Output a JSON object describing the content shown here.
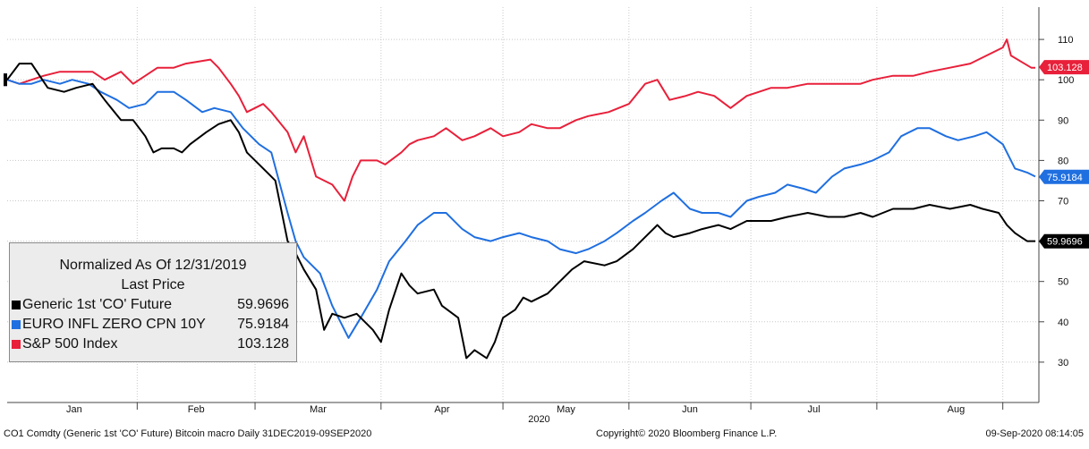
{
  "footer": {
    "left": "CO1 Comdty (Generic 1st 'CO' Future) Bitcoin macro  Daily 31DEC2019-09SEP2020",
    "center": "Copyright© 2020 Bloomberg Finance L.P.",
    "right": "09-Sep-2020 08:14:05"
  },
  "chart_data": {
    "type": "line",
    "title": "Normalized As Of 12/31/2019",
    "subtitle": "Last Price",
    "x_labels": [
      "Jan",
      "Feb",
      "Mar",
      "Apr",
      "May",
      "Jun",
      "Jul",
      "Aug"
    ],
    "x_year_label": "2020",
    "y_ticks": [
      30,
      40,
      50,
      60,
      70,
      80,
      90,
      100,
      110
    ],
    "ylim": [
      20,
      118
    ],
    "x_range": [
      "2019-12-31",
      "2020-09-09"
    ],
    "legend_position": "bottom-left",
    "series": [
      {
        "name": "Generic 1st 'CO' Future",
        "color": "#000000",
        "last": "59.9696",
        "points": [
          [
            "2019-12-31",
            100
          ],
          [
            "2020-01-03",
            104
          ],
          [
            "2020-01-06",
            104
          ],
          [
            "2020-01-08",
            101
          ],
          [
            "2020-01-10",
            98
          ],
          [
            "2020-01-14",
            97
          ],
          [
            "2020-01-17",
            98
          ],
          [
            "2020-01-21",
            99
          ],
          [
            "2020-01-24",
            95
          ],
          [
            "2020-01-28",
            90
          ],
          [
            "2020-01-31",
            90
          ],
          [
            "2020-02-03",
            86
          ],
          [
            "2020-02-05",
            82
          ],
          [
            "2020-02-07",
            83
          ],
          [
            "2020-02-10",
            83
          ],
          [
            "2020-02-12",
            82
          ],
          [
            "2020-02-14",
            84
          ],
          [
            "2020-02-18",
            87
          ],
          [
            "2020-02-21",
            89
          ],
          [
            "2020-02-24",
            90
          ],
          [
            "2020-02-26",
            87
          ],
          [
            "2020-02-28",
            82
          ],
          [
            "2020-03-02",
            79
          ],
          [
            "2020-03-04",
            77
          ],
          [
            "2020-03-06",
            75
          ],
          [
            "2020-03-09",
            60
          ],
          [
            "2020-03-11",
            57
          ],
          [
            "2020-03-13",
            53
          ],
          [
            "2020-03-16",
            48
          ],
          [
            "2020-03-18",
            38
          ],
          [
            "2020-03-20",
            42
          ],
          [
            "2020-03-23",
            41
          ],
          [
            "2020-03-26",
            42
          ],
          [
            "2020-03-30",
            38
          ],
          [
            "2020-04-01",
            35
          ],
          [
            "2020-04-03",
            43
          ],
          [
            "2020-04-06",
            52
          ],
          [
            "2020-04-08",
            49
          ],
          [
            "2020-04-10",
            47
          ],
          [
            "2020-04-14",
            48
          ],
          [
            "2020-04-16",
            44
          ],
          [
            "2020-04-20",
            41
          ],
          [
            "2020-04-22",
            31
          ],
          [
            "2020-04-24",
            33
          ],
          [
            "2020-04-27",
            31
          ],
          [
            "2020-04-29",
            35
          ],
          [
            "2020-05-01",
            41
          ],
          [
            "2020-05-04",
            43
          ],
          [
            "2020-05-06",
            46
          ],
          [
            "2020-05-08",
            45
          ],
          [
            "2020-05-12",
            47
          ],
          [
            "2020-05-14",
            49
          ],
          [
            "2020-05-18",
            53
          ],
          [
            "2020-05-21",
            55
          ],
          [
            "2020-05-26",
            54
          ],
          [
            "2020-05-29",
            55
          ],
          [
            "2020-06-02",
            58
          ],
          [
            "2020-06-05",
            61
          ],
          [
            "2020-06-08",
            64
          ],
          [
            "2020-06-10",
            62
          ],
          [
            "2020-06-12",
            61
          ],
          [
            "2020-06-16",
            62
          ],
          [
            "2020-06-19",
            63
          ],
          [
            "2020-06-23",
            64
          ],
          [
            "2020-06-26",
            63
          ],
          [
            "2020-06-30",
            65
          ],
          [
            "2020-07-06",
            65
          ],
          [
            "2020-07-10",
            66
          ],
          [
            "2020-07-15",
            67
          ],
          [
            "2020-07-20",
            66
          ],
          [
            "2020-07-24",
            66
          ],
          [
            "2020-07-28",
            67
          ],
          [
            "2020-07-31",
            66
          ],
          [
            "2020-08-05",
            68
          ],
          [
            "2020-08-10",
            68
          ],
          [
            "2020-08-14",
            69
          ],
          [
            "2020-08-19",
            68
          ],
          [
            "2020-08-24",
            69
          ],
          [
            "2020-08-27",
            68
          ],
          [
            "2020-08-31",
            67
          ],
          [
            "2020-09-02",
            64
          ],
          [
            "2020-09-04",
            62
          ],
          [
            "2020-09-07",
            60
          ],
          [
            "2020-09-09",
            60
          ]
        ]
      },
      {
        "name": "EURO INFL ZERO CPN 10Y",
        "color": "#1f6fe0",
        "last": "75.9184",
        "points": [
          [
            "2019-12-31",
            100
          ],
          [
            "2020-01-03",
            99
          ],
          [
            "2020-01-06",
            99
          ],
          [
            "2020-01-09",
            100
          ],
          [
            "2020-01-13",
            99
          ],
          [
            "2020-01-16",
            100
          ],
          [
            "2020-01-20",
            99
          ],
          [
            "2020-01-23",
            97
          ],
          [
            "2020-01-27",
            95
          ],
          [
            "2020-01-30",
            93
          ],
          [
            "2020-02-03",
            94
          ],
          [
            "2020-02-06",
            97
          ],
          [
            "2020-02-10",
            97
          ],
          [
            "2020-02-13",
            95
          ],
          [
            "2020-02-17",
            92
          ],
          [
            "2020-02-20",
            93
          ],
          [
            "2020-02-24",
            92
          ],
          [
            "2020-02-27",
            88
          ],
          [
            "2020-03-02",
            84
          ],
          [
            "2020-03-05",
            82
          ],
          [
            "2020-03-09",
            67
          ],
          [
            "2020-03-11",
            60
          ],
          [
            "2020-03-13",
            56
          ],
          [
            "2020-03-17",
            52
          ],
          [
            "2020-03-20",
            44
          ],
          [
            "2020-03-24",
            36
          ],
          [
            "2020-03-27",
            41
          ],
          [
            "2020-03-31",
            48
          ],
          [
            "2020-04-03",
            55
          ],
          [
            "2020-04-07",
            60
          ],
          [
            "2020-04-10",
            64
          ],
          [
            "2020-04-14",
            67
          ],
          [
            "2020-04-17",
            67
          ],
          [
            "2020-04-21",
            63
          ],
          [
            "2020-04-24",
            61
          ],
          [
            "2020-04-28",
            60
          ],
          [
            "2020-05-01",
            61
          ],
          [
            "2020-05-05",
            62
          ],
          [
            "2020-05-08",
            61
          ],
          [
            "2020-05-12",
            60
          ],
          [
            "2020-05-15",
            58
          ],
          [
            "2020-05-19",
            57
          ],
          [
            "2020-05-22",
            58
          ],
          [
            "2020-05-26",
            60
          ],
          [
            "2020-05-29",
            62
          ],
          [
            "2020-06-02",
            65
          ],
          [
            "2020-06-05",
            67
          ],
          [
            "2020-06-09",
            70
          ],
          [
            "2020-06-12",
            72
          ],
          [
            "2020-06-16",
            68
          ],
          [
            "2020-06-19",
            67
          ],
          [
            "2020-06-23",
            67
          ],
          [
            "2020-06-26",
            66
          ],
          [
            "2020-06-30",
            70
          ],
          [
            "2020-07-03",
            71
          ],
          [
            "2020-07-07",
            72
          ],
          [
            "2020-07-10",
            74
          ],
          [
            "2020-07-14",
            73
          ],
          [
            "2020-07-17",
            72
          ],
          [
            "2020-07-21",
            76
          ],
          [
            "2020-07-24",
            78
          ],
          [
            "2020-07-28",
            79
          ],
          [
            "2020-07-31",
            80
          ],
          [
            "2020-08-04",
            82
          ],
          [
            "2020-08-07",
            86
          ],
          [
            "2020-08-11",
            88
          ],
          [
            "2020-08-14",
            88
          ],
          [
            "2020-08-18",
            86
          ],
          [
            "2020-08-21",
            85
          ],
          [
            "2020-08-25",
            86
          ],
          [
            "2020-08-28",
            87
          ],
          [
            "2020-09-01",
            84
          ],
          [
            "2020-09-04",
            78
          ],
          [
            "2020-09-07",
            77
          ],
          [
            "2020-09-09",
            76
          ]
        ]
      },
      {
        "name": "S&P 500 Index",
        "color": "#e8203a",
        "last": "103.128",
        "points": [
          [
            "2019-12-31",
            100
          ],
          [
            "2020-01-03",
            99
          ],
          [
            "2020-01-06",
            100
          ],
          [
            "2020-01-09",
            101
          ],
          [
            "2020-01-13",
            102
          ],
          [
            "2020-01-16",
            102
          ],
          [
            "2020-01-21",
            102
          ],
          [
            "2020-01-24",
            100
          ],
          [
            "2020-01-28",
            102
          ],
          [
            "2020-01-31",
            99
          ],
          [
            "2020-02-03",
            101
          ],
          [
            "2020-02-06",
            103
          ],
          [
            "2020-02-10",
            103
          ],
          [
            "2020-02-13",
            104
          ],
          [
            "2020-02-19",
            105
          ],
          [
            "2020-02-21",
            103
          ],
          [
            "2020-02-24",
            99
          ],
          [
            "2020-02-26",
            96
          ],
          [
            "2020-02-28",
            92
          ],
          [
            "2020-03-03",
            94
          ],
          [
            "2020-03-05",
            92
          ],
          [
            "2020-03-09",
            87
          ],
          [
            "2020-03-11",
            82
          ],
          [
            "2020-03-13",
            86
          ],
          [
            "2020-03-16",
            76
          ],
          [
            "2020-03-18",
            75
          ],
          [
            "2020-03-20",
            74
          ],
          [
            "2020-03-23",
            70
          ],
          [
            "2020-03-25",
            76
          ],
          [
            "2020-03-27",
            80
          ],
          [
            "2020-03-31",
            80
          ],
          [
            "2020-04-02",
            79
          ],
          [
            "2020-04-06",
            82
          ],
          [
            "2020-04-08",
            84
          ],
          [
            "2020-04-10",
            85
          ],
          [
            "2020-04-14",
            86
          ],
          [
            "2020-04-17",
            88
          ],
          [
            "2020-04-21",
            85
          ],
          [
            "2020-04-24",
            86
          ],
          [
            "2020-04-28",
            88
          ],
          [
            "2020-05-01",
            86
          ],
          [
            "2020-05-05",
            87
          ],
          [
            "2020-05-08",
            89
          ],
          [
            "2020-05-12",
            88
          ],
          [
            "2020-05-15",
            88
          ],
          [
            "2020-05-19",
            90
          ],
          [
            "2020-05-22",
            91
          ],
          [
            "2020-05-27",
            92
          ],
          [
            "2020-06-01",
            94
          ],
          [
            "2020-06-05",
            99
          ],
          [
            "2020-06-08",
            100
          ],
          [
            "2020-06-11",
            95
          ],
          [
            "2020-06-15",
            96
          ],
          [
            "2020-06-18",
            97
          ],
          [
            "2020-06-22",
            96
          ],
          [
            "2020-06-26",
            93
          ],
          [
            "2020-06-30",
            96
          ],
          [
            "2020-07-06",
            98
          ],
          [
            "2020-07-10",
            98
          ],
          [
            "2020-07-15",
            99
          ],
          [
            "2020-07-20",
            99
          ],
          [
            "2020-07-24",
            99
          ],
          [
            "2020-07-28",
            99
          ],
          [
            "2020-07-31",
            100
          ],
          [
            "2020-08-05",
            101
          ],
          [
            "2020-08-10",
            101
          ],
          [
            "2020-08-14",
            102
          ],
          [
            "2020-08-19",
            103
          ],
          [
            "2020-08-24",
            104
          ],
          [
            "2020-08-28",
            106
          ],
          [
            "2020-09-01",
            108
          ],
          [
            "2020-09-02",
            110
          ],
          [
            "2020-09-03",
            106
          ],
          [
            "2020-09-08",
            103
          ],
          [
            "2020-09-09",
            103
          ]
        ]
      }
    ]
  }
}
